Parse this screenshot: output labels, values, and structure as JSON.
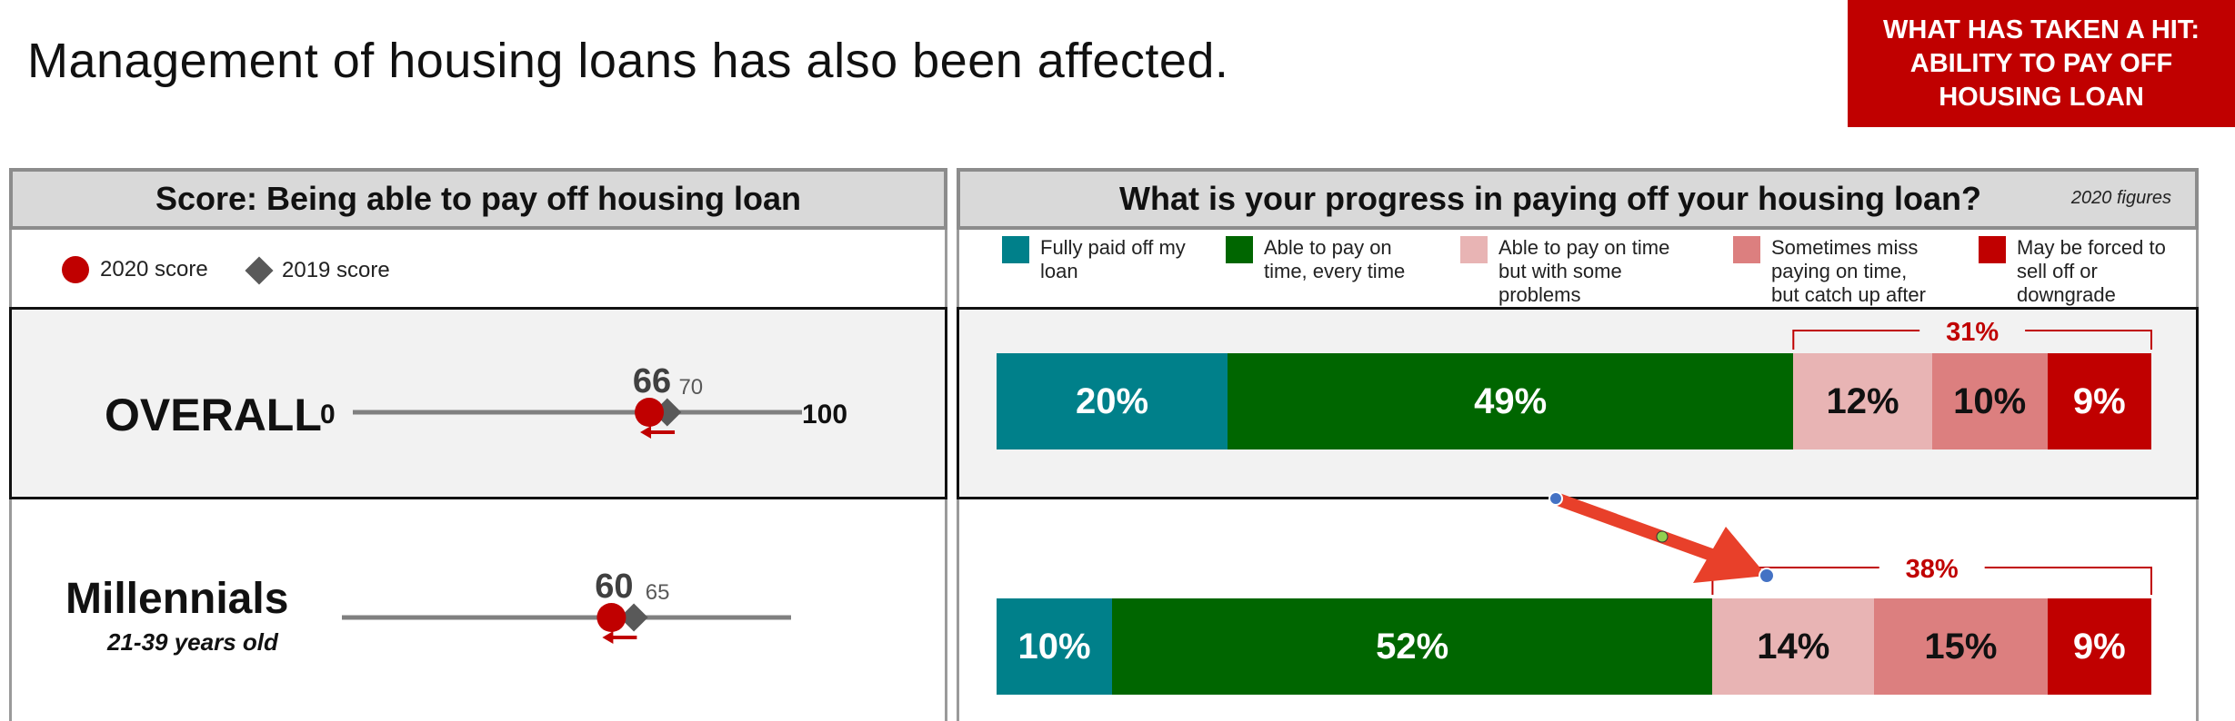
{
  "page": {
    "title": "Management of housing loans has also been affected.",
    "badge_lines": [
      "WHAT HAS TAKEN A HIT:",
      "ABILITY TO PAY OFF",
      "HOUSING LOAN"
    ]
  },
  "colors": {
    "teal": "#00808a",
    "green": "#006600",
    "pink_light": "#e8b4b4",
    "pink_mid": "#dc7f7f",
    "red": "#c00000",
    "grey_diamond": "#595959",
    "axis": "#808080",
    "arrow": "#e8402a"
  },
  "chart_data": [
    {
      "type": "scatter",
      "title": "Score: Being able to pay off housing loan",
      "legend": [
        {
          "name": "2020 score",
          "marker": "circle",
          "color": "#c00000"
        },
        {
          "name": "2019 score",
          "marker": "diamond",
          "color": "#595959"
        }
      ],
      "xlim": [
        0,
        100
      ],
      "axis_labels": {
        "min": "0",
        "max": "100"
      },
      "rows": [
        {
          "label": "OVERALL",
          "sublabel": "",
          "score_2020": 66,
          "score_2019": 70,
          "show_axis_ends": true
        },
        {
          "label": "Millennials",
          "sublabel": "21-39 years old",
          "score_2020": 60,
          "score_2019": 65,
          "show_axis_ends": false
        }
      ]
    },
    {
      "type": "bar",
      "orientation": "horizontal-stacked",
      "title": "What is your progress in paying off your housing loan?",
      "note": "2020 figures",
      "legend_placement": "top",
      "categories": [
        "Fully paid off my loan",
        "Able to pay on time, every time",
        "Able to pay on time but with some problems",
        "Sometimes miss paying on time, but catch up after",
        "May be forced to sell off or downgrade"
      ],
      "legend_lines": [
        [
          "Fully paid off my",
          "loan"
        ],
        [
          "Able to pay on",
          "time, every time"
        ],
        [
          "Able to pay on time",
          "but with some",
          "problems"
        ],
        [
          "Sometimes miss",
          "paying on time,",
          "but catch up after"
        ],
        [
          "May be forced to",
          "sell off or",
          "downgrade"
        ]
      ],
      "series": [
        {
          "name": "OVERALL",
          "values": [
            20,
            49,
            12,
            10,
            9
          ],
          "labels": [
            "20%",
            "49%",
            "12%",
            "10%",
            "9%"
          ],
          "bracket_label": "31%"
        },
        {
          "name": "Millennials",
          "values": [
            10,
            52,
            14,
            15,
            9
          ],
          "labels": [
            "10%",
            "52%",
            "14%",
            "15%",
            "9%"
          ],
          "bracket_label": "38%"
        }
      ]
    }
  ]
}
